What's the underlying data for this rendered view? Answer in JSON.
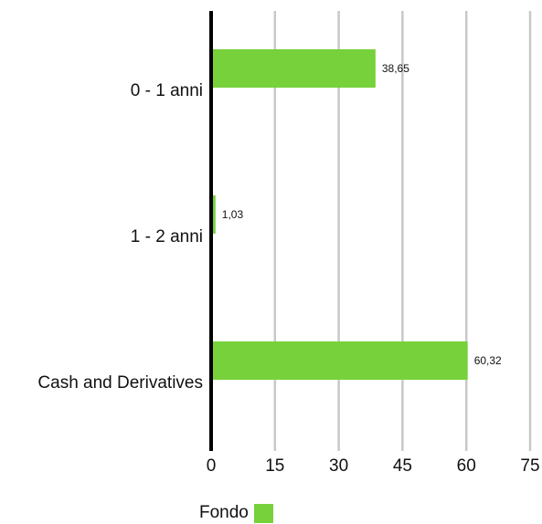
{
  "chart_data": {
    "type": "bar",
    "orientation": "horizontal",
    "categories": [
      "0 - 1 anni",
      "1 - 2 anni",
      "Cash and Derivatives"
    ],
    "series": [
      {
        "name": "Fondo",
        "values": [
          38.65,
          1.03,
          60.32
        ],
        "value_labels": [
          "38,65",
          "1,03",
          "60,32"
        ],
        "color": "#76d13a"
      }
    ],
    "xlim": [
      0,
      75
    ],
    "xticks": [
      0,
      15,
      30,
      45,
      60,
      75
    ],
    "grid": true,
    "legend_position": "bottom-left"
  }
}
